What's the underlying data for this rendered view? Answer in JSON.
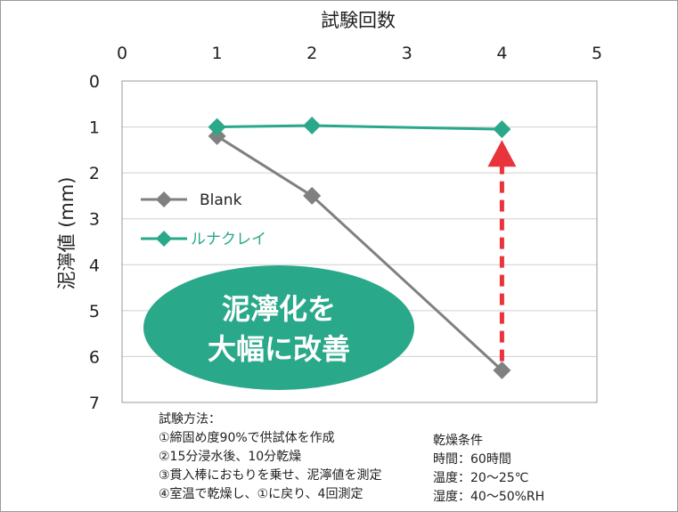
{
  "chart_data": {
    "type": "line",
    "xlabel": "試験回数",
    "ylabel": "泥濘値 (mm)",
    "xlim": [
      0,
      5
    ],
    "ylim": [
      0,
      7
    ],
    "y_inverted": true,
    "x_axis_position": "top",
    "x_ticks": [
      "0",
      "1",
      "2",
      "3",
      "4",
      "5"
    ],
    "y_ticks": [
      "0",
      "1",
      "2",
      "3",
      "4",
      "5",
      "6",
      "7"
    ],
    "grid": "horizontal",
    "legend_position": "left-middle",
    "series": [
      {
        "name": "Blank",
        "color": "#808080",
        "x": [
          1,
          2,
          4
        ],
        "y": [
          1.2,
          2.5,
          6.3
        ]
      },
      {
        "name": "ルナクレイ",
        "color": "#2aa88a",
        "x": [
          1,
          2,
          4
        ],
        "y": [
          1.0,
          0.97,
          1.05
        ]
      }
    ],
    "arrow": {
      "x": 4,
      "y_from": 6.1,
      "y_to": 1.4,
      "color": "#e8343a",
      "style": "dashed"
    },
    "callout": {
      "lines": [
        "泥濘化を",
        "大幅に改善"
      ],
      "color": "#2aa88a"
    }
  },
  "notes": {
    "method": [
      "試験方法：",
      "①締固め度90%で供試体を作成",
      "②15分浸水後、10分乾燥",
      "③貫入棒におもりを乗せ、泥濘値を測定",
      "④室温で乾燥し、①に戻り、4回測定"
    ],
    "conditions": [
      "乾燥条件",
      "時間：60時間",
      "温度：20～25℃",
      "湿度：40～50%RH"
    ]
  }
}
